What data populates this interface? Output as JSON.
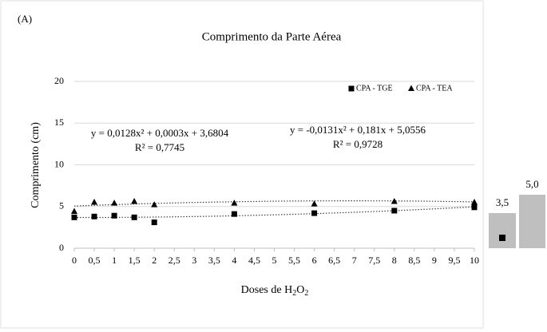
{
  "panel_label": "(A)",
  "chart_data": {
    "type": "scatter",
    "title": "Comprimento da Parte Aérea",
    "ylabel": "Comprimento  (cm)",
    "xlabel": [
      "Doses de H",
      "2",
      "O",
      "2"
    ],
    "xlim": [
      0,
      10
    ],
    "ylim": [
      0,
      20
    ],
    "xticks": [
      0,
      {
        "value": 0.5,
        "label": "0,5"
      },
      1,
      {
        "value": 1.5,
        "label": "1,5"
      },
      2,
      {
        "value": 2.5,
        "label": "2,5"
      },
      3,
      {
        "value": 3.5,
        "label": "3,5"
      },
      4,
      {
        "value": 4.5,
        "label": "4,5"
      },
      5,
      {
        "value": 5.5,
        "label": "5,5"
      },
      6,
      {
        "value": 6.5,
        "label": "6,5"
      },
      7,
      {
        "value": 7.5,
        "label": "7,5"
      },
      8,
      {
        "value": 8.5,
        "label": "8,5"
      },
      9,
      {
        "value": 9.5,
        "label": "9,5"
      },
      10
    ],
    "yticks": [
      0,
      5,
      10,
      15,
      20
    ],
    "grid": true,
    "legend": "top-right",
    "x": [
      0,
      0.5,
      1,
      1.5,
      2,
      4,
      6,
      8,
      10
    ],
    "series": [
      {
        "name": "CPA - TGE",
        "color": "#000000",
        "marker": "square",
        "values": [
          3.7,
          3.8,
          3.9,
          3.7,
          3.1,
          4.1,
          4.2,
          4.5,
          4.9
        ],
        "trendline": {
          "equation": "y = 0,0128x² + 0,0003x + 3,6804",
          "r2": "R² = 0,7745"
        }
      },
      {
        "name": "CPA - TEA",
        "color": "#000000",
        "marker": "triangle",
        "values": [
          4.4,
          5.5,
          5.4,
          5.6,
          5.2,
          5.4,
          5.3,
          5.6,
          5.5
        ],
        "trendline": {
          "equation": "y = -0,0131x² + 0,181x + 5,0556",
          "r2": "R² = 0,9728"
        }
      }
    ],
    "inset_labels": [
      "3,5",
      "5,0"
    ]
  }
}
